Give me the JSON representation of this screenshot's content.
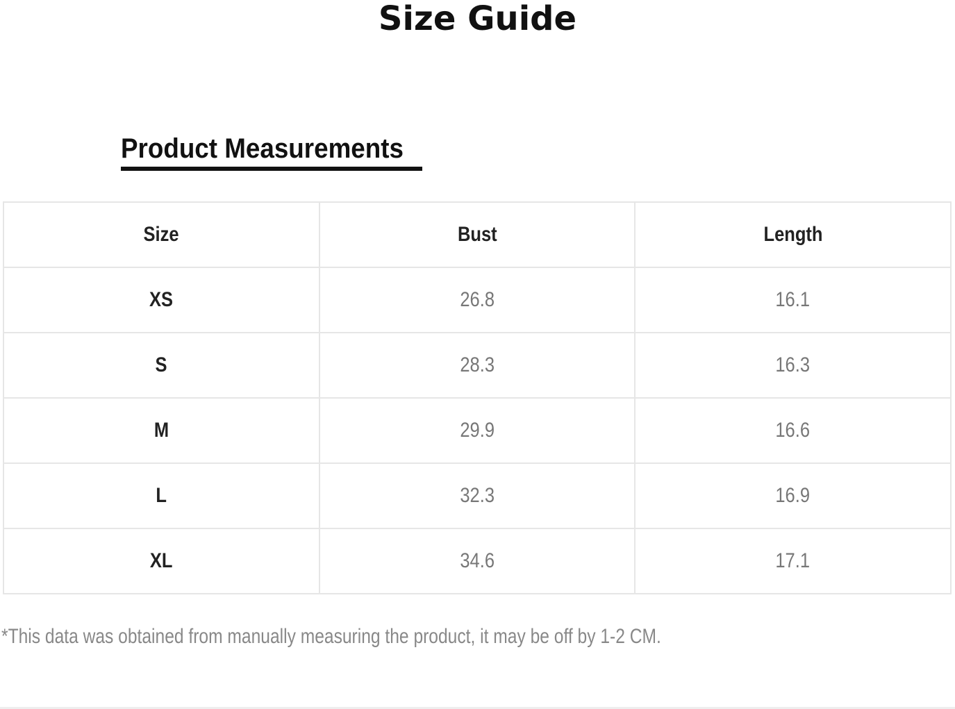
{
  "title": "Size Guide",
  "section_title": "Product Measurements",
  "table": {
    "headers": [
      "Size",
      "Bust",
      "Length"
    ],
    "rows": [
      [
        "XS",
        "26.8",
        "16.1"
      ],
      [
        "S",
        "28.3",
        "16.3"
      ],
      [
        "M",
        "29.9",
        "16.6"
      ],
      [
        "L",
        "32.3",
        "16.9"
      ],
      [
        "XL",
        "34.6",
        "17.1"
      ]
    ]
  },
  "note": "*This data was obtained from manually measuring the product, it may be off by 1-2 CM."
}
